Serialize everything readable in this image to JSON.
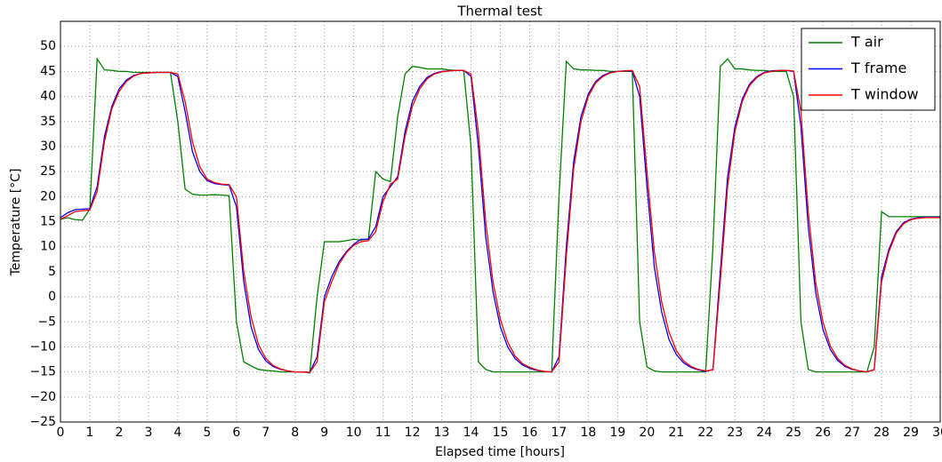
{
  "chart_data": {
    "type": "line",
    "title": "Thermal test",
    "x_label": "Elapsed time [hours]",
    "y_label": "Temperature [°C]",
    "xlim": [
      0,
      30
    ],
    "ylim": [
      -25,
      55
    ],
    "xticks": [
      0,
      1,
      2,
      3,
      4,
      5,
      6,
      7,
      8,
      9,
      10,
      11,
      12,
      13,
      14,
      15,
      16,
      17,
      18,
      19,
      20,
      21,
      22,
      23,
      24,
      25,
      26,
      27,
      28,
      29,
      30
    ],
    "yticks": [
      {
        "value": -25,
        "label": "−25"
      },
      {
        "value": -20,
        "label": "−20"
      },
      {
        "value": -15,
        "label": "−15"
      },
      {
        "value": -10,
        "label": "−10"
      },
      {
        "value": -5,
        "label": "−5"
      },
      0,
      5,
      10,
      15,
      20,
      25,
      30,
      35,
      40,
      45,
      50
    ],
    "grid": true,
    "legend": "upper right",
    "x": [
      0,
      0.25,
      0.5,
      0.75,
      1,
      1.25,
      1.5,
      1.75,
      2,
      2.25,
      2.5,
      2.75,
      3,
      3.25,
      3.5,
      3.75,
      4,
      4.25,
      4.5,
      4.75,
      5,
      5.25,
      5.5,
      5.75,
      6,
      6.25,
      6.5,
      6.75,
      7,
      7.25,
      7.5,
      7.75,
      8,
      8.25,
      8.5,
      8.75,
      9,
      9.25,
      9.5,
      9.75,
      10,
      10.25,
      10.5,
      10.75,
      11,
      11.25,
      11.5,
      11.75,
      12,
      12.25,
      12.5,
      12.75,
      13,
      13.25,
      13.5,
      13.75,
      14,
      14.25,
      14.5,
      14.75,
      15,
      15.25,
      15.5,
      15.75,
      16,
      16.25,
      16.5,
      16.75,
      17,
      17.25,
      17.5,
      17.75,
      18,
      18.25,
      18.5,
      18.75,
      19,
      19.25,
      19.5,
      19.75,
      20,
      20.25,
      20.5,
      20.75,
      21,
      21.25,
      21.5,
      21.75,
      22,
      22.25,
      22.5,
      22.75,
      23,
      23.25,
      23.5,
      23.75,
      24,
      24.25,
      24.5,
      24.75,
      25,
      25.25,
      25.5,
      25.75,
      26,
      26.25,
      26.5,
      26.75,
      27,
      27.25,
      27.5,
      27.75,
      28,
      28.25,
      28.5,
      28.75,
      29,
      29.25,
      29.5,
      29.75,
      30
    ],
    "series": [
      {
        "name": "T air",
        "color": "#008000",
        "values": [
          15.5,
          15.8,
          15.4,
          15.3,
          17.5,
          47.5,
          45.3,
          45.2,
          45,
          45,
          44.8,
          44.8,
          44.8,
          44.8,
          44.8,
          44.8,
          35,
          21.5,
          20.5,
          20.3,
          20.3,
          20.4,
          20.3,
          20.2,
          -5,
          -13,
          -13.8,
          -14.5,
          -14.7,
          -14.8,
          -15,
          -15,
          -15,
          -15,
          -15.2,
          0,
          11,
          11,
          11,
          11.2,
          11.5,
          11.3,
          11.5,
          25,
          23.5,
          23,
          36,
          44.5,
          46,
          45.8,
          45.5,
          45.5,
          45.5,
          45.3,
          45.2,
          45.2,
          30,
          -13,
          -14.5,
          -15,
          -15,
          -15,
          -15,
          -15,
          -15,
          -15,
          -15,
          -15,
          20,
          47,
          45.5,
          45.3,
          45.3,
          45.2,
          45.2,
          45,
          45,
          45,
          45,
          -5,
          -14,
          -14.8,
          -15,
          -15,
          -15,
          -15,
          -15,
          -15,
          -15,
          10,
          46,
          47.5,
          45.5,
          45.5,
          45.3,
          45.2,
          45.2,
          45,
          45,
          45,
          40,
          -5,
          -14.5,
          -15,
          -15,
          -15,
          -15,
          -15,
          -15,
          -15,
          -15,
          -10,
          17,
          16,
          16,
          16,
          16,
          16,
          16,
          16,
          16
        ]
      },
      {
        "name": "T frame",
        "color": "#0000ff",
        "values": [
          15.8,
          16.8,
          17.4,
          17.5,
          17.6,
          22,
          32,
          38,
          41.5,
          43.3,
          44.2,
          44.6,
          44.7,
          44.8,
          44.8,
          44.8,
          44,
          37,
          29,
          25,
          23.2,
          22.6,
          22.4,
          22.3,
          18,
          3,
          -6,
          -10.5,
          -12.8,
          -13.9,
          -14.5,
          -14.8,
          -15,
          -15,
          -15.1,
          -12,
          0,
          4,
          7,
          9,
          10.5,
          11.5,
          11.5,
          14,
          20,
          22,
          24,
          33,
          39,
          42,
          43.8,
          44.6,
          45,
          45.1,
          45.2,
          45.2,
          44,
          30,
          12,
          1,
          -6,
          -10,
          -12.3,
          -13.6,
          -14.3,
          -14.7,
          -14.9,
          -15,
          -12,
          10,
          27,
          36,
          40.5,
          43,
          44.2,
          44.8,
          45,
          45.1,
          45.1,
          40,
          22,
          6,
          -3,
          -8.5,
          -11.5,
          -13.2,
          -14.1,
          -14.6,
          -14.9,
          -14.5,
          5,
          24,
          34,
          39.5,
          42.5,
          44,
          44.8,
          45.1,
          45.2,
          45.2,
          45,
          34,
          14,
          1,
          -6.5,
          -10.5,
          -12.7,
          -13.9,
          -14.5,
          -14.8,
          -15,
          -14.5,
          4,
          9.5,
          13,
          14.8,
          15.5,
          15.8,
          15.9,
          15.9,
          15.9
        ]
      },
      {
        "name": "T window",
        "color": "#ff0000",
        "values": [
          15.5,
          16.2,
          17,
          17.2,
          17.3,
          21,
          31,
          37.5,
          41,
          43,
          44.1,
          44.6,
          44.7,
          44.8,
          44.8,
          44.8,
          44.5,
          39,
          31,
          26,
          23.5,
          22.8,
          22.5,
          22.4,
          20,
          5,
          -4,
          -9.5,
          -12.3,
          -13.7,
          -14.4,
          -14.8,
          -15,
          -15,
          -15.1,
          -13,
          -1,
          3,
          6.5,
          8.8,
          10.3,
          11,
          11.2,
          13,
          19,
          22.5,
          23.5,
          32,
          38,
          41.5,
          43.5,
          44.5,
          44.9,
          45.1,
          45.2,
          45.2,
          44.5,
          33,
          15,
          3,
          -4.5,
          -9,
          -11.8,
          -13.3,
          -14.1,
          -14.6,
          -14.9,
          -15,
          -13,
          8,
          25.5,
          35,
          40,
          42.7,
          44,
          44.7,
          45,
          45.1,
          45.2,
          42,
          25,
          9,
          -1,
          -7,
          -10.7,
          -12.8,
          -13.9,
          -14.5,
          -14.8,
          -14.6,
          3,
          22,
          33,
          39,
          42.2,
          43.8,
          44.7,
          45,
          45.2,
          45.2,
          45.1,
          37,
          17,
          3,
          -5,
          -9.8,
          -12.3,
          -13.7,
          -14.4,
          -14.8,
          -15,
          -14.6,
          3,
          9,
          12.7,
          14.6,
          15.4,
          15.7,
          15.8,
          15.8,
          15.8
        ]
      }
    ]
  }
}
